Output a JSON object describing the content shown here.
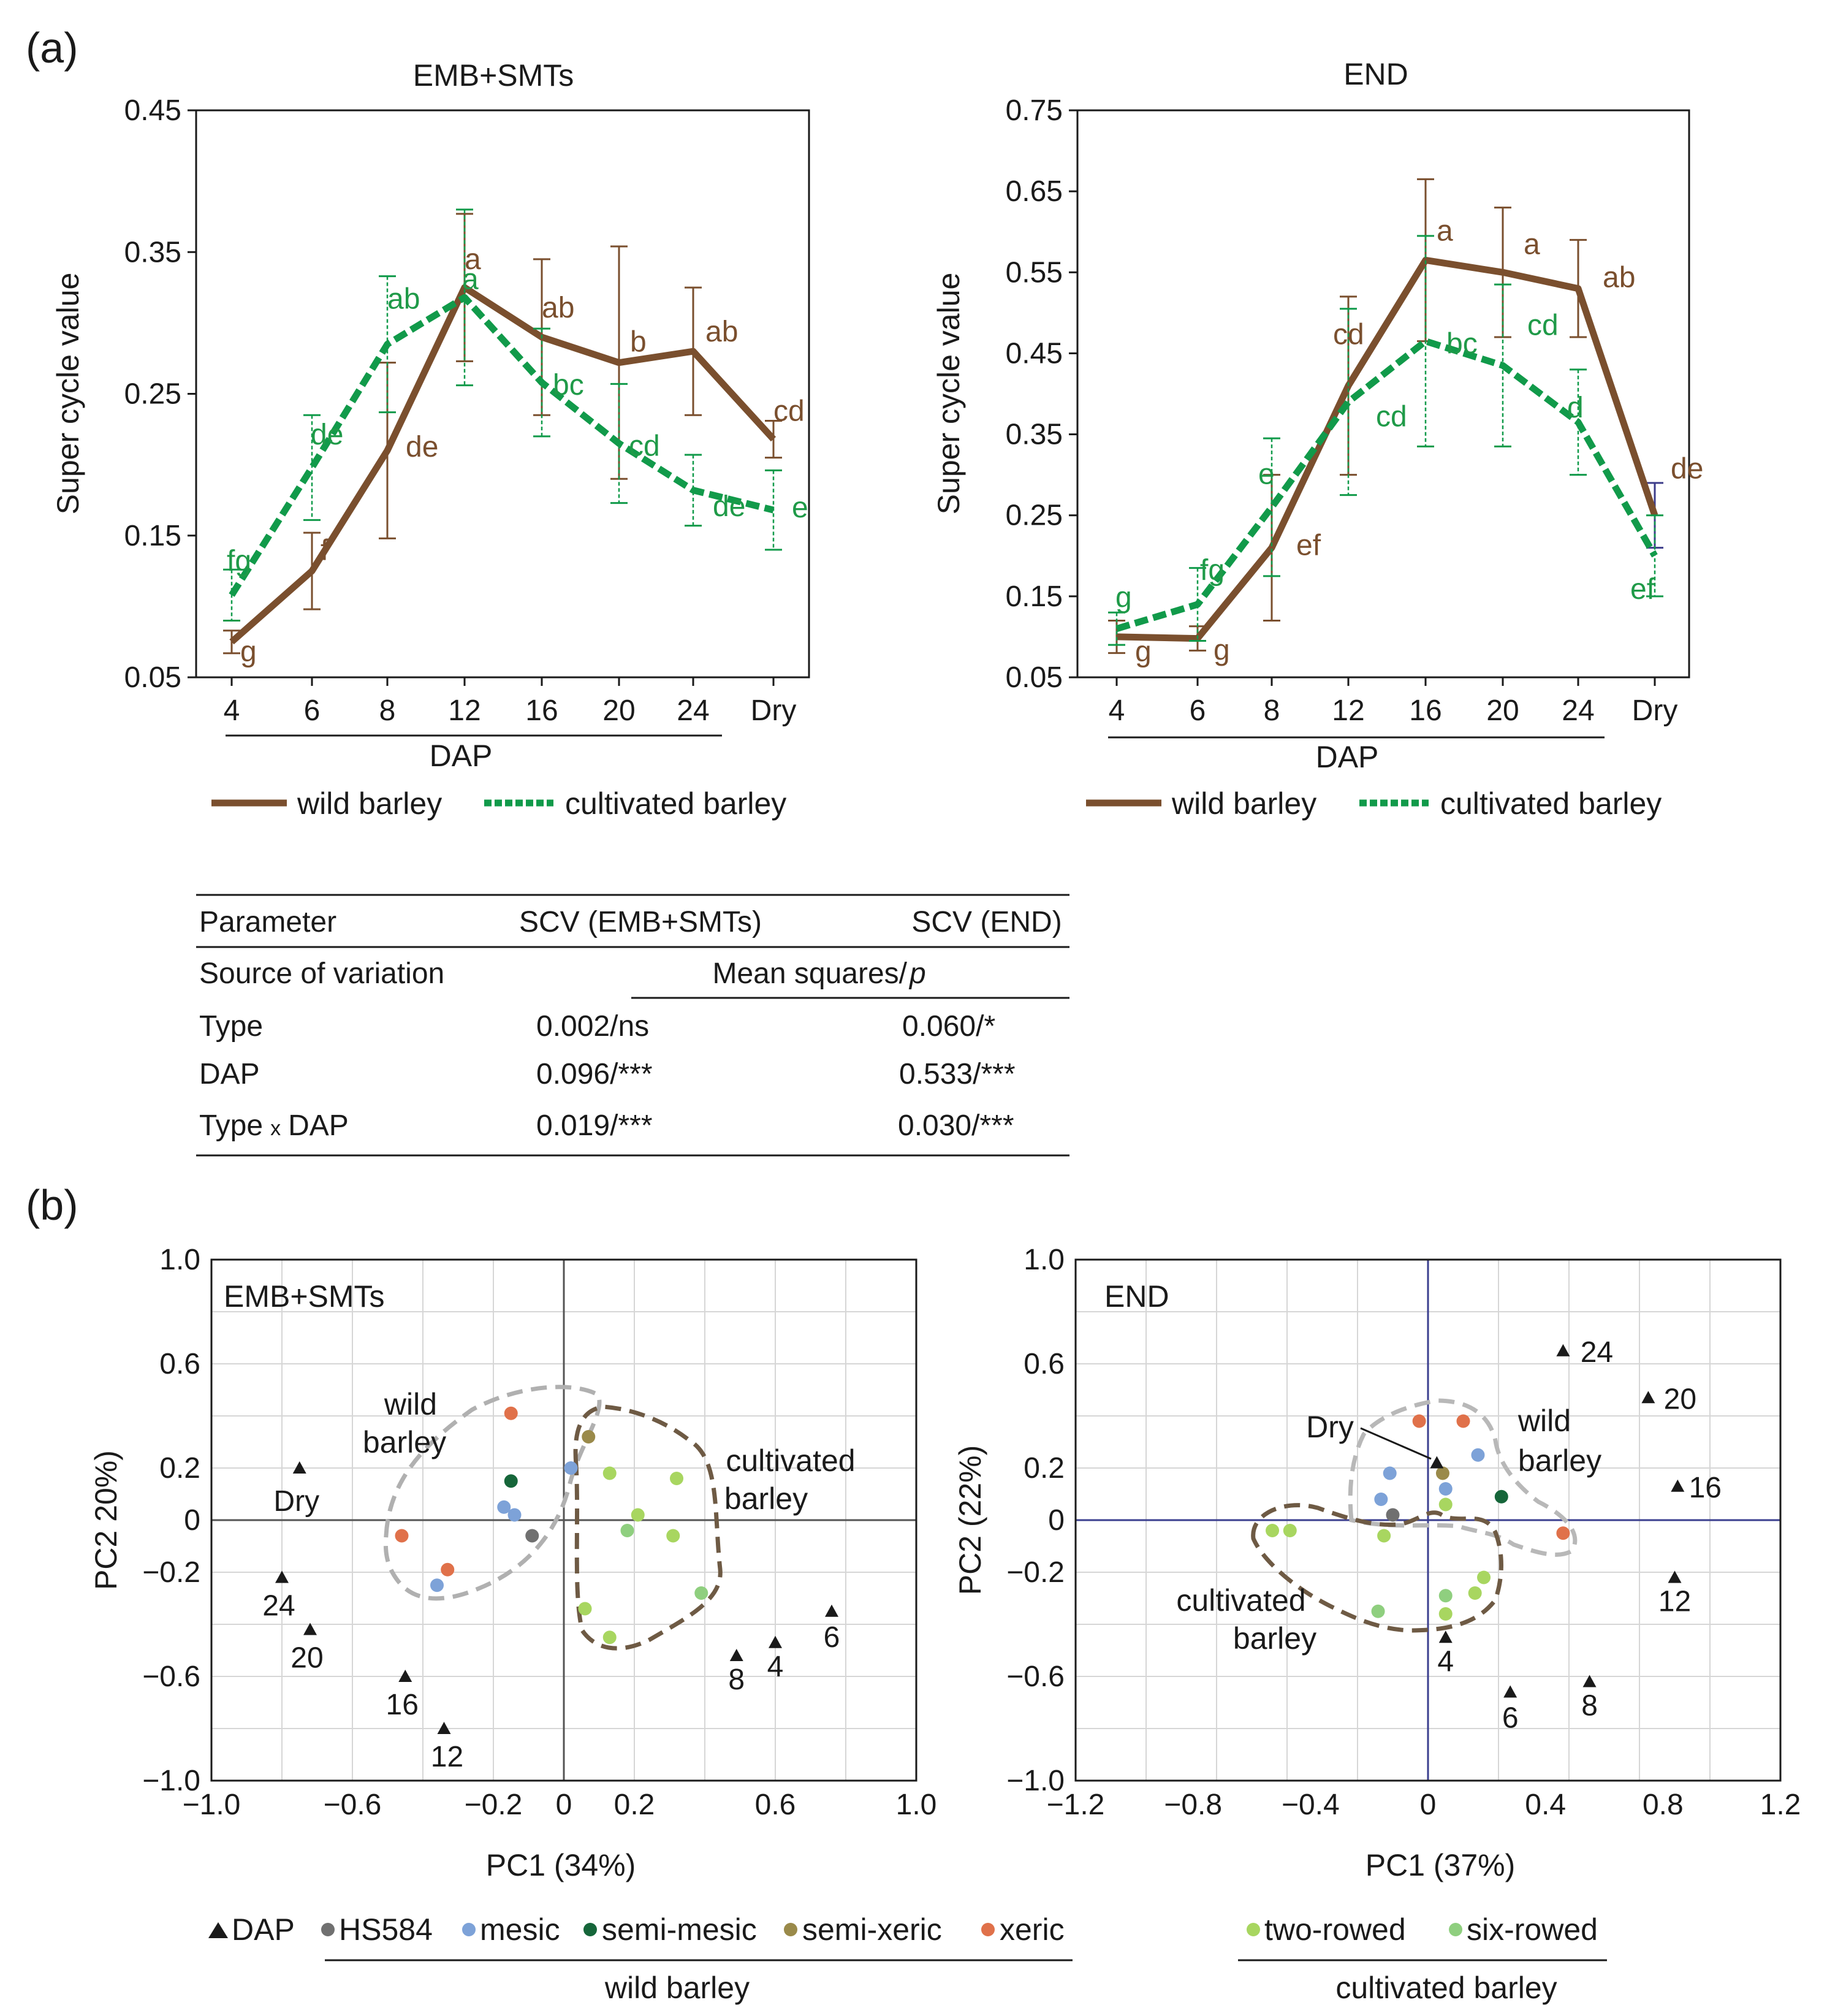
{
  "panels": {
    "a_label": "(a)",
    "b_label": "(b)"
  },
  "colors": {
    "wild": "#7a4f2e",
    "cultivated": "#119a4a",
    "wild_letter": "#7a4f2e",
    "cult_letter": "#1f9a48",
    "hs584": "#707070",
    "mesic": "#7da2d8",
    "semi_mesic": "#16663a",
    "semi_xeric": "#9a8a4a",
    "xeric": "#e0714a",
    "two_rowed": "#a8d660",
    "six_rowed": "#8fcf7f",
    "axis_pca_right": "#3b3f8f",
    "dry_err": "#3d3d8a"
  },
  "chart_data": [
    {
      "id": "line-emb",
      "type": "line",
      "title": "EMB+SMTs",
      "ylabel": "Super cycle value",
      "xlabel": "DAP",
      "categories": [
        "4",
        "6",
        "8",
        "12",
        "16",
        "20",
        "24",
        "Dry"
      ],
      "ylim": [
        0.05,
        0.45
      ],
      "yticks": [
        "0.05",
        "0.15",
        "0.25",
        "0.35",
        "0.45"
      ],
      "series": [
        {
          "name": "wild barley",
          "values": [
            0.075,
            0.125,
            0.21,
            0.325,
            0.29,
            0.272,
            0.28,
            0.218
          ],
          "err": [
            0.008,
            0.027,
            0.062,
            0.052,
            0.055,
            0.082,
            0.045,
            0.013
          ],
          "letters": [
            "g",
            "f",
            "de",
            "a",
            "ab",
            "b",
            "ab",
            "cd"
          ]
        },
        {
          "name": "cultivated barley",
          "values": [
            0.108,
            0.198,
            0.285,
            0.318,
            0.258,
            0.215,
            0.182,
            0.168
          ],
          "err": [
            0.018,
            0.037,
            0.048,
            0.062,
            0.038,
            0.042,
            0.025,
            0.028
          ],
          "letters": [
            "fg",
            "de",
            "ab",
            "a",
            "bc",
            "cd",
            "de",
            "e"
          ]
        }
      ],
      "legend": [
        "wild barley",
        "cultivated barley"
      ]
    },
    {
      "id": "line-end",
      "type": "line",
      "title": "END",
      "ylabel": "Super cycle value",
      "xlabel": "DAP",
      "categories": [
        "4",
        "6",
        "8",
        "12",
        "16",
        "20",
        "24",
        "Dry"
      ],
      "ylim": [
        0.05,
        0.75
      ],
      "yticks": [
        "0.05",
        "0.15",
        "0.25",
        "0.35",
        "0.45",
        "0.55",
        "0.65",
        "0.75"
      ],
      "series": [
        {
          "name": "wild barley",
          "values": [
            0.1,
            0.098,
            0.21,
            0.41,
            0.565,
            0.55,
            0.53,
            0.25
          ],
          "err": [
            0.02,
            0.015,
            0.09,
            0.11,
            0.1,
            0.08,
            0.06,
            0.04
          ],
          "letters": [
            "g",
            "g",
            "ef",
            "cd",
            "a",
            "a",
            "ab",
            "de"
          ]
        },
        {
          "name": "cultivated barley",
          "values": [
            0.11,
            0.14,
            0.26,
            0.39,
            0.465,
            0.435,
            0.365,
            0.2
          ],
          "err": [
            0.02,
            0.045,
            0.085,
            0.115,
            0.13,
            0.1,
            0.065,
            0.05
          ],
          "letters": [
            "g",
            "fg",
            "e",
            "cd",
            "bc",
            "cd",
            "d",
            "ef"
          ]
        }
      ],
      "legend": [
        "wild barley",
        "cultivated barley"
      ]
    },
    {
      "id": "pca-emb",
      "type": "scatter",
      "title": "EMB+SMTs",
      "xlabel": "PC1 (34%)",
      "ylabel": "PC2 20%)",
      "xlim": [
        -1.0,
        1.0
      ],
      "ylim": [
        -1.0,
        1.0
      ],
      "xticks": [
        "−1.0",
        "−0.6",
        "−0.2",
        "0",
        "0.2",
        "0.6",
        "1.0"
      ],
      "yticks": [
        "1.0",
        "0.6",
        "0.2",
        "0",
        "−0.2",
        "−0.6",
        "−1.0"
      ],
      "dap": [
        {
          "label": "Dry",
          "x": -0.75,
          "y": 0.2
        },
        {
          "label": "24",
          "x": -0.8,
          "y": -0.22
        },
        {
          "label": "20",
          "x": -0.72,
          "y": -0.42
        },
        {
          "label": "16",
          "x": -0.45,
          "y": -0.6
        },
        {
          "label": "12",
          "x": -0.34,
          "y": -0.8
        },
        {
          "label": "8",
          "x": 0.49,
          "y": -0.52
        },
        {
          "label": "4",
          "x": 0.6,
          "y": -0.47
        },
        {
          "label": "6",
          "x": 0.76,
          "y": -0.35
        }
      ],
      "points": [
        {
          "g": "xeric",
          "x": -0.15,
          "y": 0.41
        },
        {
          "g": "xeric",
          "x": -0.46,
          "y": -0.06
        },
        {
          "g": "xeric",
          "x": -0.33,
          "y": -0.19
        },
        {
          "g": "semi_mesic",
          "x": -0.15,
          "y": 0.15
        },
        {
          "g": "mesic",
          "x": -0.17,
          "y": 0.05
        },
        {
          "g": "mesic",
          "x": -0.14,
          "y": 0.02
        },
        {
          "g": "mesic",
          "x": -0.36,
          "y": -0.25
        },
        {
          "g": "mesic",
          "x": 0.02,
          "y": 0.2
        },
        {
          "g": "hs584",
          "x": -0.09,
          "y": -0.06
        },
        {
          "g": "semi_xeric",
          "x": 0.07,
          "y": 0.32
        },
        {
          "g": "two_rowed",
          "x": 0.13,
          "y": 0.18
        },
        {
          "g": "two_rowed",
          "x": 0.32,
          "y": 0.16
        },
        {
          "g": "six_rowed",
          "x": 0.18,
          "y": -0.04
        },
        {
          "g": "two_rowed",
          "x": 0.21,
          "y": 0.02
        },
        {
          "g": "two_rowed",
          "x": 0.31,
          "y": -0.06
        },
        {
          "g": "six_rowed",
          "x": 0.39,
          "y": -0.28
        },
        {
          "g": "two_rowed",
          "x": 0.06,
          "y": -0.34
        },
        {
          "g": "two_rowed",
          "x": 0.13,
          "y": -0.45
        }
      ],
      "annotations": {
        "wild": [
          "wild",
          "barley"
        ],
        "cult": [
          "cultivated",
          "barley"
        ]
      }
    },
    {
      "id": "pca-end",
      "type": "scatter",
      "title": "END",
      "xlabel": "PC1 (37%)",
      "ylabel": "PC2 (22%)",
      "xlim": [
        -1.2,
        1.2
      ],
      "ylim": [
        -1.0,
        1.0
      ],
      "xticks": [
        "−1.2",
        "−0.8",
        "−0.4",
        "0",
        "0.4",
        "0.8",
        "1.2"
      ],
      "yticks": [
        "1.0",
        "0.6",
        "0.2",
        "0",
        "−0.2",
        "−0.6",
        "−1.0"
      ],
      "dap": [
        {
          "label": "24",
          "x": 0.46,
          "y": 0.65
        },
        {
          "label": "20",
          "x": 0.75,
          "y": 0.47
        },
        {
          "label": "16",
          "x": 0.85,
          "y": 0.13
        },
        {
          "label": "12",
          "x": 0.84,
          "y": -0.22
        },
        {
          "label": "4",
          "x": 0.06,
          "y": -0.45
        },
        {
          "label": "6",
          "x": 0.28,
          "y": -0.66
        },
        {
          "label": "8",
          "x": 0.55,
          "y": -0.62
        },
        {
          "label": "Dry",
          "x": 0.03,
          "y": 0.22
        }
      ],
      "points": [
        {
          "g": "xeric",
          "x": -0.03,
          "y": 0.38
        },
        {
          "g": "xeric",
          "x": 0.12,
          "y": 0.38
        },
        {
          "g": "xeric",
          "x": 0.46,
          "y": -0.05
        },
        {
          "g": "mesic",
          "x": -0.13,
          "y": 0.18
        },
        {
          "g": "mesic",
          "x": 0.17,
          "y": 0.25
        },
        {
          "g": "mesic",
          "x": 0.06,
          "y": 0.12
        },
        {
          "g": "mesic",
          "x": -0.16,
          "y": 0.08
        },
        {
          "g": "semi_mesic",
          "x": 0.25,
          "y": 0.09
        },
        {
          "g": "semi_xeric",
          "x": 0.05,
          "y": 0.18
        },
        {
          "g": "hs584",
          "x": -0.12,
          "y": 0.02
        },
        {
          "g": "two_rowed",
          "x": -0.53,
          "y": -0.04
        },
        {
          "g": "two_rowed",
          "x": -0.47,
          "y": -0.04
        },
        {
          "g": "two_rowed",
          "x": -0.15,
          "y": -0.06
        },
        {
          "g": "two_rowed",
          "x": 0.06,
          "y": 0.06
        },
        {
          "g": "six_rowed",
          "x": -0.17,
          "y": -0.35
        },
        {
          "g": "six_rowed",
          "x": 0.06,
          "y": -0.29
        },
        {
          "g": "two_rowed",
          "x": 0.06,
          "y": -0.36
        },
        {
          "g": "two_rowed",
          "x": 0.16,
          "y": -0.28
        },
        {
          "g": "two_rowed",
          "x": 0.19,
          "y": -0.22
        }
      ],
      "annotations": {
        "wild": [
          "wild",
          "barley"
        ],
        "cult": [
          "cultivated",
          "barley"
        ],
        "dry_label": "Dry"
      }
    }
  ],
  "table": {
    "headers": [
      "Parameter",
      "SCV (EMB+SMTs)",
      "SCV (END)"
    ],
    "subheaders": [
      "Source of variation",
      "Mean squares/",
      "p"
    ],
    "rows": [
      {
        "source": "Type",
        "emb": "0.002/ns",
        "end": "0.060/*"
      },
      {
        "source": "DAP",
        "emb": "0.096/***",
        "end": "0.533/***"
      },
      {
        "source_a": "Type",
        "source_x": "x",
        "source_b": "DAP",
        "emb": "0.019/***",
        "end": "0.030/***"
      }
    ]
  },
  "legend_b": {
    "dap": "DAP",
    "hs584": "HS584",
    "mesic": "mesic",
    "semi_mesic": "semi-mesic",
    "semi_xeric": "semi-xeric",
    "xeric": "xeric",
    "wild_group": "wild barley",
    "two_rowed": "two-rowed",
    "six_rowed": "six-rowed",
    "cult_group": "cultivated barley"
  }
}
